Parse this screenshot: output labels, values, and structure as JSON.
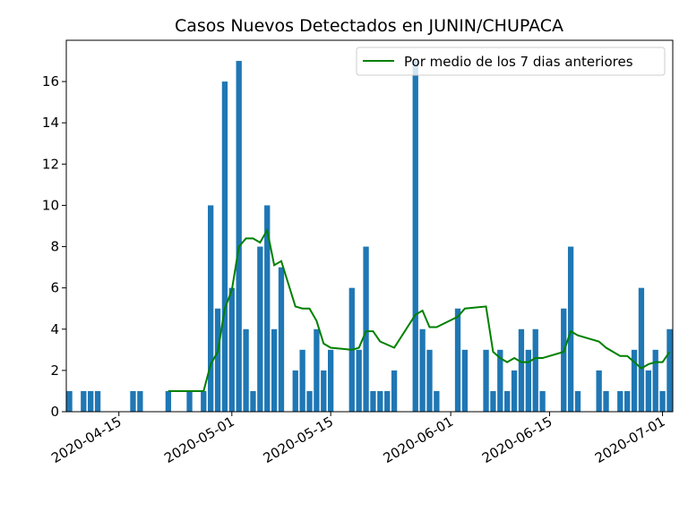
{
  "chart_data": {
    "type": "bar",
    "title": "Casos Nuevos Detectados en JUNIN/CHUPACA",
    "xlabel": "",
    "ylabel": "",
    "x_range": [
      "2020-04-08",
      "2020-07-02"
    ],
    "ylim": [
      0,
      18
    ],
    "y_ticks": [
      0,
      2,
      4,
      6,
      8,
      10,
      12,
      14,
      16
    ],
    "x_ticks": [
      "2020-04-15",
      "2020-05-01",
      "2020-05-15",
      "2020-06-01",
      "2020-06-15",
      "2020-07-01"
    ],
    "grid": false,
    "legend_position": "top-right",
    "bar_color": "#1f77b4",
    "line_color": "#008000",
    "series": [
      {
        "name": "",
        "type": "bar",
        "points": [
          {
            "x": "2020-04-08",
            "y": 1
          },
          {
            "x": "2020-04-10",
            "y": 1
          },
          {
            "x": "2020-04-11",
            "y": 1
          },
          {
            "x": "2020-04-12",
            "y": 1
          },
          {
            "x": "2020-04-17",
            "y": 1
          },
          {
            "x": "2020-04-18",
            "y": 1
          },
          {
            "x": "2020-04-22",
            "y": 1
          },
          {
            "x": "2020-04-25",
            "y": 1
          },
          {
            "x": "2020-04-27",
            "y": 1
          },
          {
            "x": "2020-04-28",
            "y": 10
          },
          {
            "x": "2020-04-29",
            "y": 5
          },
          {
            "x": "2020-04-30",
            "y": 16
          },
          {
            "x": "2020-05-01",
            "y": 6
          },
          {
            "x": "2020-05-02",
            "y": 17
          },
          {
            "x": "2020-05-03",
            "y": 4
          },
          {
            "x": "2020-05-04",
            "y": 1
          },
          {
            "x": "2020-05-05",
            "y": 8
          },
          {
            "x": "2020-05-06",
            "y": 10
          },
          {
            "x": "2020-05-07",
            "y": 4
          },
          {
            "x": "2020-05-08",
            "y": 7
          },
          {
            "x": "2020-05-10",
            "y": 2
          },
          {
            "x": "2020-05-11",
            "y": 3
          },
          {
            "x": "2020-05-12",
            "y": 1
          },
          {
            "x": "2020-05-13",
            "y": 4
          },
          {
            "x": "2020-05-14",
            "y": 2
          },
          {
            "x": "2020-05-15",
            "y": 3
          },
          {
            "x": "2020-05-18",
            "y": 6
          },
          {
            "x": "2020-05-19",
            "y": 3
          },
          {
            "x": "2020-05-20",
            "y": 8
          },
          {
            "x": "2020-05-21",
            "y": 1
          },
          {
            "x": "2020-05-22",
            "y": 1
          },
          {
            "x": "2020-05-23",
            "y": 1
          },
          {
            "x": "2020-05-24",
            "y": 2
          },
          {
            "x": "2020-05-27",
            "y": 17
          },
          {
            "x": "2020-05-28",
            "y": 4
          },
          {
            "x": "2020-05-29",
            "y": 3
          },
          {
            "x": "2020-05-30",
            "y": 1
          },
          {
            "x": "2020-06-02",
            "y": 5
          },
          {
            "x": "2020-06-03",
            "y": 3
          },
          {
            "x": "2020-06-06",
            "y": 3
          },
          {
            "x": "2020-06-07",
            "y": 1
          },
          {
            "x": "2020-06-08",
            "y": 3
          },
          {
            "x": "2020-06-09",
            "y": 1
          },
          {
            "x": "2020-06-10",
            "y": 2
          },
          {
            "x": "2020-06-11",
            "y": 4
          },
          {
            "x": "2020-06-12",
            "y": 3
          },
          {
            "x": "2020-06-13",
            "y": 4
          },
          {
            "x": "2020-06-14",
            "y": 1
          },
          {
            "x": "2020-06-17",
            "y": 5
          },
          {
            "x": "2020-06-18",
            "y": 8
          },
          {
            "x": "2020-06-19",
            "y": 1
          },
          {
            "x": "2020-06-22",
            "y": 2
          },
          {
            "x": "2020-06-23",
            "y": 1
          },
          {
            "x": "2020-06-25",
            "y": 1
          },
          {
            "x": "2020-06-26",
            "y": 1
          },
          {
            "x": "2020-06-27",
            "y": 3
          },
          {
            "x": "2020-06-28",
            "y": 6
          },
          {
            "x": "2020-06-29",
            "y": 2
          },
          {
            "x": "2020-06-30",
            "y": 3
          },
          {
            "x": "2020-07-01",
            "y": 1
          },
          {
            "x": "2020-07-02",
            "y": 4
          }
        ]
      },
      {
        "name": "Por medio de los 7 dias anteriores",
        "type": "line",
        "points": [
          {
            "x": "2020-04-22",
            "y": 1.0
          },
          {
            "x": "2020-04-27",
            "y": 1.0
          },
          {
            "x": "2020-04-28",
            "y": 2.3
          },
          {
            "x": "2020-04-29",
            "y": 2.9
          },
          {
            "x": "2020-04-30",
            "y": 5.0
          },
          {
            "x": "2020-05-01",
            "y": 5.9
          },
          {
            "x": "2020-05-02",
            "y": 8.0
          },
          {
            "x": "2020-05-03",
            "y": 8.4
          },
          {
            "x": "2020-05-04",
            "y": 8.4
          },
          {
            "x": "2020-05-05",
            "y": 8.2
          },
          {
            "x": "2020-05-06",
            "y": 8.8
          },
          {
            "x": "2020-05-07",
            "y": 7.1
          },
          {
            "x": "2020-05-08",
            "y": 7.3
          },
          {
            "x": "2020-05-10",
            "y": 5.1
          },
          {
            "x": "2020-05-11",
            "y": 5.0
          },
          {
            "x": "2020-05-12",
            "y": 5.0
          },
          {
            "x": "2020-05-13",
            "y": 4.4
          },
          {
            "x": "2020-05-14",
            "y": 3.3
          },
          {
            "x": "2020-05-15",
            "y": 3.1
          },
          {
            "x": "2020-05-18",
            "y": 3.0
          },
          {
            "x": "2020-05-19",
            "y": 3.1
          },
          {
            "x": "2020-05-20",
            "y": 3.9
          },
          {
            "x": "2020-05-21",
            "y": 3.9
          },
          {
            "x": "2020-05-22",
            "y": 3.4
          },
          {
            "x": "2020-05-24",
            "y": 3.1
          },
          {
            "x": "2020-05-27",
            "y": 4.7
          },
          {
            "x": "2020-05-28",
            "y": 4.9
          },
          {
            "x": "2020-05-29",
            "y": 4.1
          },
          {
            "x": "2020-05-30",
            "y": 4.1
          },
          {
            "x": "2020-06-02",
            "y": 4.6
          },
          {
            "x": "2020-06-03",
            "y": 5.0
          },
          {
            "x": "2020-06-06",
            "y": 5.1
          },
          {
            "x": "2020-06-07",
            "y": 2.9
          },
          {
            "x": "2020-06-08",
            "y": 2.6
          },
          {
            "x": "2020-06-09",
            "y": 2.4
          },
          {
            "x": "2020-06-10",
            "y": 2.6
          },
          {
            "x": "2020-06-11",
            "y": 2.4
          },
          {
            "x": "2020-06-12",
            "y": 2.4
          },
          {
            "x": "2020-06-13",
            "y": 2.6
          },
          {
            "x": "2020-06-14",
            "y": 2.6
          },
          {
            "x": "2020-06-17",
            "y": 2.9
          },
          {
            "x": "2020-06-18",
            "y": 3.9
          },
          {
            "x": "2020-06-19",
            "y": 3.7
          },
          {
            "x": "2020-06-22",
            "y": 3.4
          },
          {
            "x": "2020-06-23",
            "y": 3.1
          },
          {
            "x": "2020-06-25",
            "y": 2.7
          },
          {
            "x": "2020-06-26",
            "y": 2.7
          },
          {
            "x": "2020-06-27",
            "y": 2.4
          },
          {
            "x": "2020-06-28",
            "y": 2.1
          },
          {
            "x": "2020-06-29",
            "y": 2.3
          },
          {
            "x": "2020-06-30",
            "y": 2.4
          },
          {
            "x": "2020-07-01",
            "y": 2.4
          },
          {
            "x": "2020-07-02",
            "y": 2.9
          }
        ]
      }
    ]
  }
}
